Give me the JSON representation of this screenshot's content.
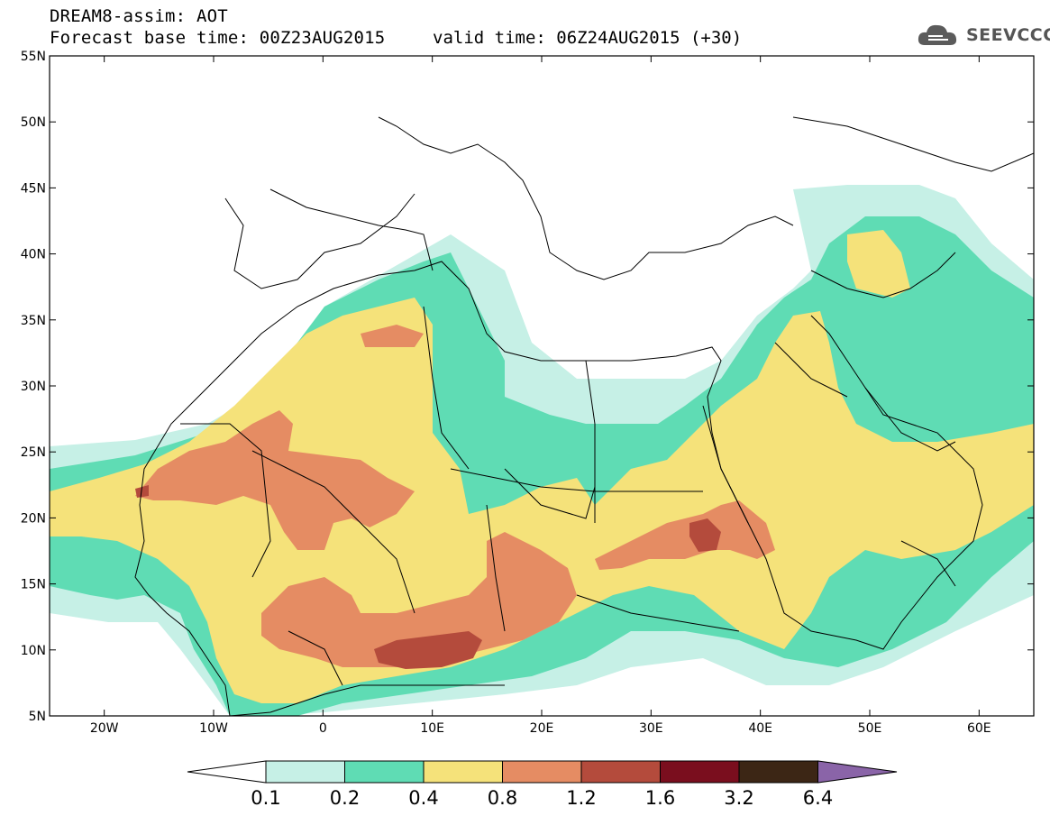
{
  "header": {
    "title_line1": "DREAM8-assim: AOT",
    "title_line2": "Forecast base time: 00Z23AUG2015",
    "valid_time": "valid time: 06Z24AUG2015 (+30)",
    "logo_text": "SEEVCCC"
  },
  "map": {
    "lat_labels": [
      "55N",
      "50N",
      "45N",
      "40N",
      "35N",
      "30N",
      "25N",
      "20N",
      "15N",
      "10N",
      "5N"
    ],
    "lon_labels": [
      "20W",
      "10W",
      "0",
      "10E",
      "20E",
      "30E",
      "40E",
      "50E",
      "60E"
    ],
    "lat_values": [
      55,
      50,
      45,
      40,
      35,
      30,
      25,
      20,
      15,
      10,
      5
    ],
    "lon_values": [
      -20,
      -10,
      0,
      10,
      20,
      30,
      40,
      50,
      60
    ],
    "lon_range": [
      -25,
      65
    ],
    "lat_range": [
      5,
      55
    ]
  },
  "legend": {
    "values": [
      "0.1",
      "0.2",
      "0.4",
      "0.8",
      "1.2",
      "1.6",
      "3.2",
      "6.4"
    ],
    "colors": [
      "#ffffff",
      "#c6f0e6",
      "#5fdcb4",
      "#f5e27a",
      "#e58c63",
      "#b44b3c",
      "#7a0e1e",
      "#3c2615",
      "#8a64a8"
    ]
  }
}
